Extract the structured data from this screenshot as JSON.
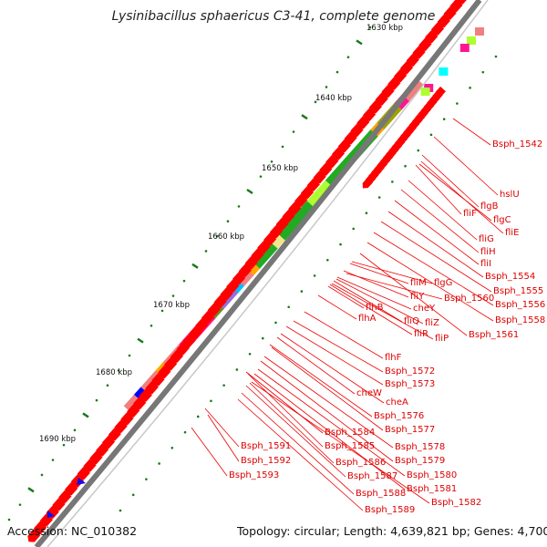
{
  "title": "Lysinibacillus sphaericus C3-41, complete genome",
  "accession": "Accession: NC_010382",
  "topology": "Topology: circular; Length: 4,639,821 bp; Genes: 4,700",
  "colors": {
    "backbone": "#777777",
    "gene": "#ff0000",
    "label": "#dd0000",
    "tick": "#1a7a1a"
  },
  "scale_labels": [
    "1630 kbp",
    "1640 kbp",
    "1650 kbp",
    "1660 kbp",
    "1670 kbp",
    "1680 kbp",
    "1690 kbp"
  ],
  "genes": [
    "Bsph_1542",
    "hslU",
    "flgB",
    "fliF",
    "flgC",
    "fliE",
    "fliG",
    "fliH",
    "fliI",
    "Bsph_1554",
    "Bsph_1555",
    "Bsph_1556",
    "Bsph_1558",
    "Bsph_1561",
    "fliM",
    "flgG",
    "fliY",
    "Bsph_1560",
    "cheY",
    "flhB",
    "fliQ",
    "fliZ",
    "flhA",
    "fliR",
    "fliP",
    "flhF",
    "Bsph_1572",
    "Bsph_1573",
    "cheW",
    "cheA",
    "Bsph_1576",
    "Bsph_1577",
    "Bsph_1584",
    "Bsph_1578",
    "Bsph_1585",
    "Bsph_1579",
    "Bsph_1586",
    "Bsph_1580",
    "Bsph_1587",
    "Bsph_1581",
    "Bsph_1588",
    "Bsph_1582",
    "Bsph_1589",
    "Bsph_1591",
    "Bsph_1592",
    "Bsph_1593"
  ]
}
